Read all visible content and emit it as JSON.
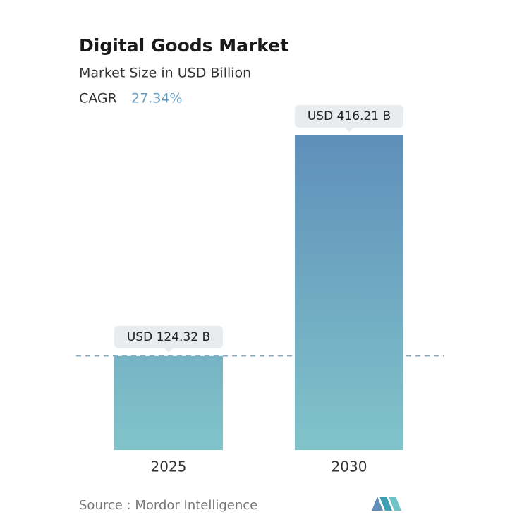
{
  "chart_data": {
    "type": "bar",
    "title": "Digital Goods Market",
    "subtitle": "Market Size in USD Billion",
    "cagr_label": "CAGR",
    "cagr_value": "27.34%",
    "categories": [
      "2025",
      "2030"
    ],
    "values": [
      124.32,
      416.21
    ],
    "value_labels": [
      "USD 124.32 B",
      "USD 416.21 B"
    ],
    "source": "Source :  Mordor Intelligence"
  }
}
